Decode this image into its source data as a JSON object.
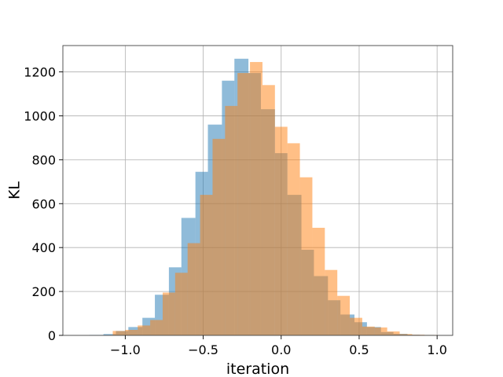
{
  "chart_data": {
    "type": "histogram",
    "title": "",
    "xlabel": "iteration",
    "ylabel": "KL",
    "xlim": [
      -1.4,
      1.1
    ],
    "ylim": [
      0,
      1320
    ],
    "xticks": [
      -1.0,
      -0.5,
      0.0,
      0.5,
      1.0
    ],
    "xtick_labels": [
      "−1.0",
      "−0.5",
      "0.0",
      "0.5",
      "1.0"
    ],
    "yticks": [
      0,
      200,
      400,
      600,
      800,
      1000,
      1200
    ],
    "ytick_labels": [
      "0",
      "200",
      "400",
      "600",
      "800",
      "1000",
      "1200"
    ],
    "grid": true,
    "legend": "none",
    "series": [
      {
        "color": "#1f77b4",
        "alpha": 0.5,
        "bins": [
          {
            "x0": -1.23,
            "x1": -1.14,
            "count": 2
          },
          {
            "x0": -1.14,
            "x1": -1.06,
            "count": 6
          },
          {
            "x0": -1.06,
            "x1": -0.98,
            "count": 20
          },
          {
            "x0": -0.98,
            "x1": -0.89,
            "count": 38
          },
          {
            "x0": -0.89,
            "x1": -0.81,
            "count": 80
          },
          {
            "x0": -0.81,
            "x1": -0.72,
            "count": 185
          },
          {
            "x0": -0.72,
            "x1": -0.64,
            "count": 310
          },
          {
            "x0": -0.64,
            "x1": -0.55,
            "count": 535
          },
          {
            "x0": -0.55,
            "x1": -0.47,
            "count": 745
          },
          {
            "x0": -0.47,
            "x1": -0.38,
            "count": 960
          },
          {
            "x0": -0.38,
            "x1": -0.3,
            "count": 1160
          },
          {
            "x0": -0.3,
            "x1": -0.21,
            "count": 1260
          },
          {
            "x0": -0.21,
            "x1": -0.13,
            "count": 1195
          },
          {
            "x0": -0.13,
            "x1": -0.04,
            "count": 1030
          },
          {
            "x0": -0.04,
            "x1": 0.04,
            "count": 830
          },
          {
            "x0": 0.04,
            "x1": 0.13,
            "count": 640
          },
          {
            "x0": 0.13,
            "x1": 0.21,
            "count": 390
          },
          {
            "x0": 0.21,
            "x1": 0.3,
            "count": 270
          },
          {
            "x0": 0.3,
            "x1": 0.38,
            "count": 160
          },
          {
            "x0": 0.38,
            "x1": 0.47,
            "count": 95
          },
          {
            "x0": 0.47,
            "x1": 0.55,
            "count": 60
          },
          {
            "x0": 0.55,
            "x1": 0.64,
            "count": 38
          },
          {
            "x0": 0.64,
            "x1": 0.72,
            "count": 15
          },
          {
            "x0": 0.72,
            "x1": 0.81,
            "count": 7
          },
          {
            "x0": 0.81,
            "x1": 0.89,
            "count": 3
          },
          {
            "x0": 0.89,
            "x1": 0.98,
            "count": 2
          }
        ]
      },
      {
        "color": "#ff7f0e",
        "alpha": 0.5,
        "bins": [
          {
            "x0": -1.08,
            "x1": -1.0,
            "count": 20
          },
          {
            "x0": -1.0,
            "x1": -0.92,
            "count": 25
          },
          {
            "x0": -0.92,
            "x1": -0.84,
            "count": 45
          },
          {
            "x0": -0.84,
            "x1": -0.76,
            "count": 70
          },
          {
            "x0": -0.76,
            "x1": -0.68,
            "count": 195
          },
          {
            "x0": -0.68,
            "x1": -0.6,
            "count": 285
          },
          {
            "x0": -0.6,
            "x1": -0.52,
            "count": 420
          },
          {
            "x0": -0.52,
            "x1": -0.44,
            "count": 640
          },
          {
            "x0": -0.44,
            "x1": -0.36,
            "count": 895
          },
          {
            "x0": -0.36,
            "x1": -0.28,
            "count": 1045
          },
          {
            "x0": -0.28,
            "x1": -0.2,
            "count": 1195
          },
          {
            "x0": -0.2,
            "x1": -0.12,
            "count": 1245
          },
          {
            "x0": -0.12,
            "x1": -0.04,
            "count": 1140
          },
          {
            "x0": -0.04,
            "x1": 0.04,
            "count": 950
          },
          {
            "x0": 0.04,
            "x1": 0.12,
            "count": 875
          },
          {
            "x0": 0.12,
            "x1": 0.2,
            "count": 720
          },
          {
            "x0": 0.2,
            "x1": 0.28,
            "count": 490
          },
          {
            "x0": 0.28,
            "x1": 0.36,
            "count": 298
          },
          {
            "x0": 0.36,
            "x1": 0.44,
            "count": 180
          },
          {
            "x0": 0.44,
            "x1": 0.52,
            "count": 80
          },
          {
            "x0": 0.52,
            "x1": 0.6,
            "count": 40
          },
          {
            "x0": 0.6,
            "x1": 0.68,
            "count": 36
          },
          {
            "x0": 0.68,
            "x1": 0.76,
            "count": 18
          },
          {
            "x0": 0.76,
            "x1": 0.84,
            "count": 6
          },
          {
            "x0": 0.84,
            "x1": 0.92,
            "count": 3
          },
          {
            "x0": 0.92,
            "x1": 1.0,
            "count": 2
          }
        ]
      }
    ]
  }
}
